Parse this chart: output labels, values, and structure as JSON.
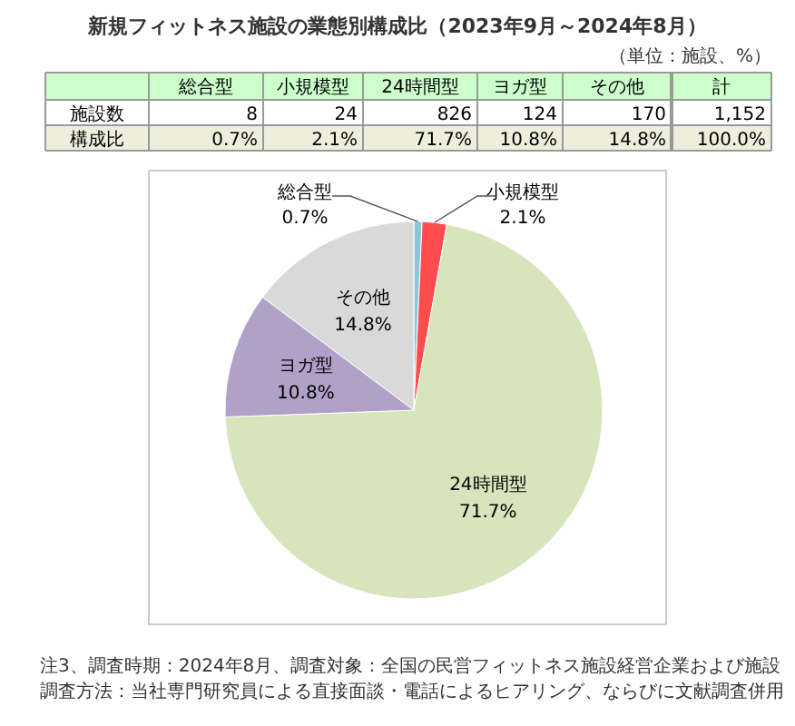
{
  "chart_data": {
    "type": "pie",
    "title": "新規フィットネス施設の業態別構成比（2023年9月～2024年8月）",
    "subtitle": "（単位：施設、%）",
    "categories": [
      "総合型",
      "小規模型",
      "24時間型",
      "ヨガ型",
      "その他"
    ],
    "values": [
      0.7,
      2.1,
      71.7,
      10.8,
      14.8
    ],
    "value_labels": [
      "0.7%",
      "2.1%",
      "71.7%",
      "10.8%",
      "14.8%"
    ],
    "totals": [
      "1,152",
      "100.0%"
    ],
    "colors": [
      "#8ec5dc",
      "#ff4d4d",
      "#d8e4bc",
      "#b1a0c7",
      "#d9d9d9"
    ],
    "annotations": [
      "施設数",
      "構成比",
      "計",
      "8",
      "24",
      "826",
      "124",
      "170",
      "注3、調査時期：2024年8月、調査対象：全国の民営フィットネス施設経営企業および施設",
      "調査方法：当社専門研究員による直接面談・電話によるヒアリング、ならびに文献調査併用"
    ]
  }
}
